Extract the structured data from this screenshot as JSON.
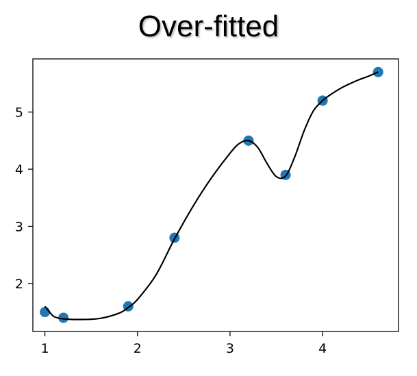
{
  "chart_data": {
    "type": "scatter",
    "title": "Over-fitted",
    "xlabel": "",
    "ylabel": "",
    "xlim": [
      0.87,
      4.82
    ],
    "ylim": [
      1.16,
      5.93
    ],
    "x_ticks": [
      1,
      2,
      3,
      4
    ],
    "y_ticks": [
      2,
      3,
      4,
      5
    ],
    "grid": false,
    "series": [
      {
        "kind": "scatter",
        "color": "#1f77b4",
        "points": [
          {
            "x": 1.0,
            "y": 1.5
          },
          {
            "x": 1.2,
            "y": 1.4
          },
          {
            "x": 1.9,
            "y": 1.6
          },
          {
            "x": 2.4,
            "y": 2.8
          },
          {
            "x": 3.2,
            "y": 4.5
          },
          {
            "x": 3.6,
            "y": 3.9
          },
          {
            "x": 4.0,
            "y": 5.2
          },
          {
            "x": 4.6,
            "y": 5.7
          }
        ]
      },
      {
        "kind": "line",
        "color": "#000000",
        "points": [
          {
            "x": 1.0,
            "y": 1.6
          },
          {
            "x": 1.05,
            "y": 1.5
          },
          {
            "x": 1.1,
            "y": 1.42
          },
          {
            "x": 1.2,
            "y": 1.38
          },
          {
            "x": 1.4,
            "y": 1.37
          },
          {
            "x": 1.6,
            "y": 1.39
          },
          {
            "x": 1.8,
            "y": 1.48
          },
          {
            "x": 1.9,
            "y": 1.58
          },
          {
            "x": 2.0,
            "y": 1.72
          },
          {
            "x": 2.2,
            "y": 2.15
          },
          {
            "x": 2.4,
            "y": 2.78
          },
          {
            "x": 2.6,
            "y": 3.35
          },
          {
            "x": 2.8,
            "y": 3.85
          },
          {
            "x": 3.0,
            "y": 4.28
          },
          {
            "x": 3.1,
            "y": 4.45
          },
          {
            "x": 3.2,
            "y": 4.5
          },
          {
            "x": 3.3,
            "y": 4.38
          },
          {
            "x": 3.4,
            "y": 4.1
          },
          {
            "x": 3.5,
            "y": 3.87
          },
          {
            "x": 3.6,
            "y": 3.88
          },
          {
            "x": 3.7,
            "y": 4.22
          },
          {
            "x": 3.8,
            "y": 4.67
          },
          {
            "x": 3.9,
            "y": 5.02
          },
          {
            "x": 4.0,
            "y": 5.2
          },
          {
            "x": 4.1,
            "y": 5.32
          },
          {
            "x": 4.2,
            "y": 5.42
          },
          {
            "x": 4.3,
            "y": 5.5
          },
          {
            "x": 4.4,
            "y": 5.57
          },
          {
            "x": 4.5,
            "y": 5.63
          },
          {
            "x": 4.6,
            "y": 5.7
          }
        ]
      }
    ]
  }
}
